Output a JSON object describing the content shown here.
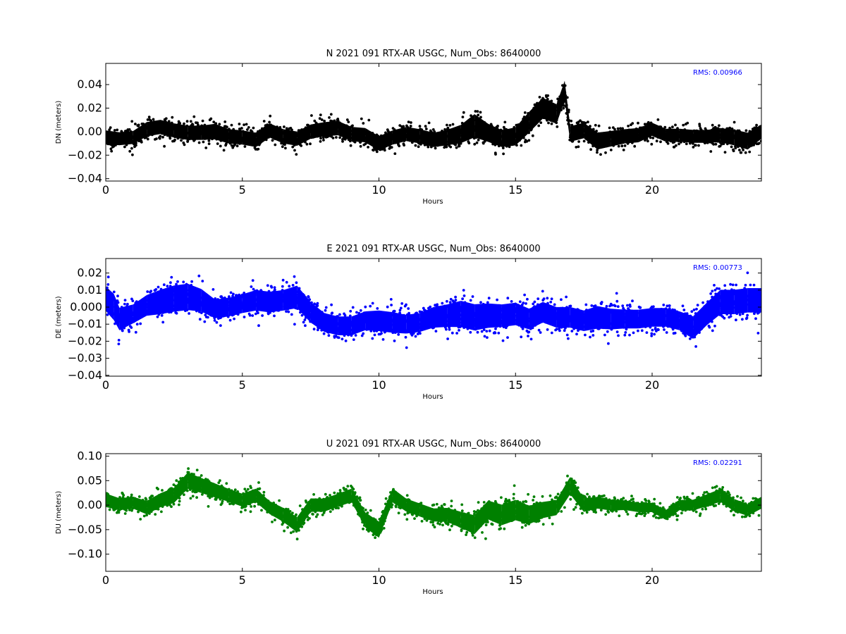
{
  "chart_data": [
    {
      "type": "scatter",
      "title": "N 2021 091 RTX-AR  USGC, Num_Obs: 8640000",
      "xlabel": "Hours",
      "ylabel": "DN (meters)",
      "xlim": [
        0,
        24
      ],
      "ylim": [
        -0.042,
        0.058
      ],
      "xticks": [
        0,
        5,
        10,
        15,
        20
      ],
      "yticks": [
        0.04,
        0.02,
        0.0,
        -0.02,
        -0.04
      ],
      "ytick_labels": [
        "0.04",
        "0.02",
        "0.00",
        "−0.02",
        "−0.04"
      ],
      "rms_text": "RMS:  0.00966",
      "color": "#000000",
      "rms_color": "#0000ff",
      "envelope": {
        "x": [
          0,
          0.5,
          1,
          1.5,
          2,
          2.5,
          3,
          3.5,
          4,
          4.5,
          5,
          5.5,
          6,
          6.5,
          7,
          7.5,
          8,
          8.5,
          9,
          9.5,
          10,
          10.5,
          11,
          11.5,
          12,
          12.5,
          13,
          13.5,
          14,
          14.5,
          15,
          15.5,
          16,
          16.5,
          16.8,
          17,
          17.5,
          18,
          18.5,
          19,
          19.5,
          20,
          20.5,
          21,
          21.5,
          22,
          22.5,
          23,
          23.5,
          24
        ],
        "center": [
          -0.005,
          -0.006,
          -0.005,
          0.002,
          0.004,
          0.001,
          -0.001,
          -0.001,
          0.0,
          -0.004,
          -0.005,
          -0.007,
          0.001,
          -0.004,
          -0.006,
          0.0,
          0.002,
          0.003,
          -0.002,
          -0.003,
          -0.01,
          -0.005,
          -0.002,
          -0.004,
          -0.007,
          -0.005,
          -0.002,
          0.005,
          -0.001,
          -0.006,
          -0.004,
          0.008,
          0.02,
          0.015,
          0.035,
          -0.002,
          0.001,
          -0.008,
          -0.006,
          -0.004,
          -0.003,
          0.002,
          -0.003,
          -0.003,
          -0.004,
          -0.004,
          -0.003,
          -0.005,
          -0.008,
          0.0
        ],
        "halfwidth": [
          0.011,
          0.01,
          0.01,
          0.011,
          0.011,
          0.011,
          0.011,
          0.011,
          0.012,
          0.011,
          0.011,
          0.011,
          0.011,
          0.011,
          0.011,
          0.011,
          0.011,
          0.011,
          0.011,
          0.011,
          0.011,
          0.011,
          0.011,
          0.011,
          0.011,
          0.012,
          0.014,
          0.018,
          0.014,
          0.013,
          0.014,
          0.016,
          0.016,
          0.015,
          0.015,
          0.012,
          0.012,
          0.013,
          0.012,
          0.011,
          0.011,
          0.01,
          0.01,
          0.01,
          0.01,
          0.01,
          0.011,
          0.012,
          0.013,
          0.011
        ]
      }
    },
    {
      "type": "scatter",
      "title": "E 2021 091 RTX-AR  USGC, Num_Obs: 8640000",
      "xlabel": "Hours",
      "ylabel": "DE (meters)",
      "xlim": [
        0,
        24
      ],
      "ylim": [
        -0.0405,
        0.0285
      ],
      "xticks": [
        0,
        5,
        10,
        15,
        20
      ],
      "yticks": [
        0.02,
        0.01,
        0.0,
        -0.01,
        -0.02,
        -0.03,
        -0.04
      ],
      "ytick_labels": [
        "0.02",
        "0.01",
        "0.000",
        "−0.01",
        "−0.02",
        "−0.03",
        "−0.04"
      ],
      "rms_text": "RMS:  0.00773",
      "color": "#0000ff",
      "rms_color": "#0000ff",
      "envelope": {
        "x": [
          0,
          0.3,
          0.5,
          1,
          1.5,
          2,
          2.5,
          3,
          3.5,
          4,
          4.5,
          5,
          5.5,
          6,
          6.5,
          7,
          7.5,
          8,
          8.5,
          9,
          9.5,
          10,
          10.5,
          11,
          11.5,
          12,
          12.5,
          13,
          13.5,
          14,
          14.5,
          15,
          15.5,
          16,
          16.5,
          17,
          17.5,
          18,
          18.5,
          19,
          19.5,
          20,
          20.5,
          21,
          21.5,
          22,
          22.5,
          23,
          23.5,
          24
        ],
        "center": [
          0.005,
          0.0,
          -0.007,
          -0.004,
          0.001,
          0.003,
          0.005,
          0.006,
          0.004,
          -0.001,
          0.0,
          0.002,
          0.004,
          0.003,
          0.004,
          0.006,
          -0.003,
          -0.009,
          -0.011,
          -0.011,
          -0.008,
          -0.008,
          -0.009,
          -0.01,
          -0.009,
          -0.006,
          -0.005,
          -0.004,
          -0.006,
          -0.005,
          -0.005,
          -0.004,
          -0.007,
          -0.003,
          -0.006,
          -0.006,
          -0.008,
          -0.006,
          -0.007,
          -0.007,
          -0.007,
          -0.006,
          -0.006,
          -0.008,
          -0.012,
          -0.004,
          0.003,
          0.003,
          0.004,
          0.004
        ],
        "halfwidth": [
          0.013,
          0.014,
          0.012,
          0.01,
          0.011,
          0.013,
          0.014,
          0.014,
          0.012,
          0.01,
          0.01,
          0.01,
          0.011,
          0.011,
          0.011,
          0.012,
          0.011,
          0.01,
          0.01,
          0.01,
          0.01,
          0.011,
          0.011,
          0.01,
          0.01,
          0.011,
          0.012,
          0.014,
          0.014,
          0.013,
          0.012,
          0.012,
          0.011,
          0.011,
          0.011,
          0.011,
          0.011,
          0.012,
          0.011,
          0.01,
          0.01,
          0.01,
          0.01,
          0.01,
          0.012,
          0.012,
          0.013,
          0.013,
          0.013,
          0.013
        ]
      }
    },
    {
      "type": "scatter",
      "title": "U 2021 091 RTX-AR  USGC, Num_Obs: 8640000",
      "xlabel": "Hours",
      "ylabel": "DU (meters)",
      "xlim": [
        0,
        24
      ],
      "ylim": [
        -0.135,
        0.105
      ],
      "xticks": [
        0,
        5,
        10,
        15,
        20
      ],
      "yticks": [
        0.1,
        0.05,
        0.0,
        -0.05,
        -0.1
      ],
      "ytick_labels": [
        "0.10",
        "0.05",
        "0.00",
        "−0.05",
        "−0.10"
      ],
      "rms_text": "RMS:  0.02291",
      "color": "#008000",
      "rms_color": "#0000ff",
      "envelope": {
        "x": [
          0,
          0.5,
          1,
          1.5,
          2,
          2.5,
          3,
          3.5,
          4,
          4.5,
          5,
          5.5,
          6,
          6.5,
          7,
          7.5,
          8,
          8.5,
          9,
          9.5,
          10,
          10.5,
          11,
          11.5,
          12,
          12.5,
          13,
          13.5,
          14,
          14.5,
          15,
          15.5,
          16,
          16.5,
          17,
          17.5,
          18,
          18.5,
          19,
          19.5,
          20,
          20.5,
          21,
          21.5,
          22,
          22.5,
          23,
          23.5,
          24
        ],
        "center": [
          0.01,
          0.002,
          0.005,
          -0.005,
          0.01,
          0.02,
          0.05,
          0.04,
          0.03,
          0.02,
          0.01,
          0.02,
          -0.005,
          -0.02,
          -0.04,
          0.0,
          0.0,
          0.01,
          0.02,
          -0.03,
          -0.05,
          0.02,
          0.0,
          -0.01,
          -0.02,
          -0.02,
          -0.03,
          -0.04,
          -0.01,
          -0.02,
          -0.01,
          -0.02,
          -0.01,
          -0.005,
          0.04,
          0.0,
          0.005,
          0.0,
          0.0,
          -0.005,
          -0.005,
          -0.02,
          0.0,
          0.0,
          0.01,
          0.02,
          0.0,
          -0.01,
          0.005
        ],
        "halfwidth": [
          0.025,
          0.022,
          0.022,
          0.025,
          0.026,
          0.028,
          0.03,
          0.028,
          0.026,
          0.024,
          0.024,
          0.025,
          0.024,
          0.026,
          0.028,
          0.025,
          0.024,
          0.024,
          0.025,
          0.028,
          0.03,
          0.026,
          0.024,
          0.024,
          0.024,
          0.026,
          0.03,
          0.035,
          0.035,
          0.038,
          0.038,
          0.034,
          0.03,
          0.028,
          0.032,
          0.025,
          0.022,
          0.02,
          0.018,
          0.017,
          0.017,
          0.018,
          0.019,
          0.02,
          0.022,
          0.024,
          0.023,
          0.022,
          0.022
        ]
      }
    }
  ]
}
